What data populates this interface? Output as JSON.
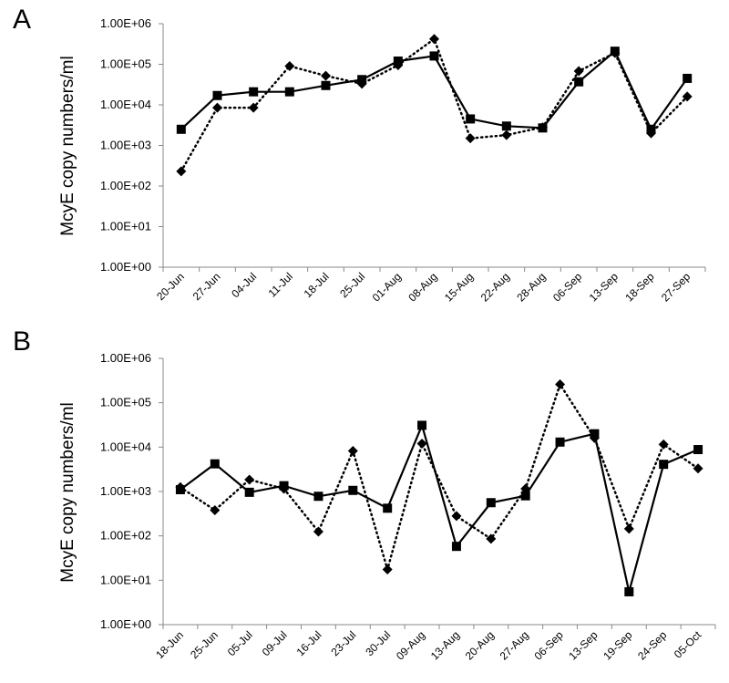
{
  "chart_data": [
    {
      "panel": "A",
      "type": "line",
      "ylabel": "McyE copy numbers/ml",
      "yscale": "log",
      "ylim": [
        1,
        1000000
      ],
      "yticks": [
        "1.00E+00",
        "1.00E+01",
        "1.00E+02",
        "1.00E+03",
        "1.00E+04",
        "1.00E+05",
        "1.00E+06"
      ],
      "grid": false,
      "categories": [
        "20-Jun",
        "27-Jun",
        "04-Jul",
        "11-Jul",
        "18-Jul",
        "25-Jul",
        "01-Aug",
        "08-Aug",
        "15-Aug",
        "22-Aug",
        "28-Aug",
        "06-Sep",
        "13-Sep",
        "18-Sep",
        "27-Sep"
      ],
      "series": [
        {
          "marker": "square",
          "line": "solid",
          "color": "#000000",
          "values": [
            2500,
            17000,
            21000,
            21000,
            30000,
            42000,
            120000,
            160000,
            4500,
            3000,
            2700,
            37000,
            210000,
            2500,
            45000
          ]
        },
        {
          "marker": "diamond",
          "line": "dotted",
          "color": "#000000",
          "values": [
            230,
            8500,
            8500,
            90000,
            52000,
            33000,
            95000,
            420000,
            1500,
            1800,
            2800,
            68000,
            190000,
            2000,
            16000
          ]
        }
      ]
    },
    {
      "panel": "B",
      "type": "line",
      "ylabel": "McyE copy numbers/ml",
      "yscale": "log",
      "ylim": [
        1,
        1000000
      ],
      "yticks": [
        "1.00E+00",
        "1.00E+01",
        "1.00E+02",
        "1.00E+03",
        "1.00E+04",
        "1.00E+05",
        "1.00E+06"
      ],
      "grid": false,
      "categories": [
        "18-Jun",
        "25-Jun",
        "05-Jul",
        "09-Jul",
        "16-Jul",
        "23-Jul",
        "30-Jul",
        "09-Aug",
        "13-Aug",
        "20-Aug",
        "27-Aug",
        "06-Sep",
        "13-Sep",
        "19-Sep",
        "24-Sep",
        "05-Oct"
      ],
      "series": [
        {
          "marker": "square",
          "line": "solid",
          "color": "#000000",
          "values": [
            1100,
            4200,
            960,
            1350,
            780,
            1060,
            420,
            31000,
            58,
            560,
            800,
            13000,
            20000,
            5.5,
            4100,
            8800
          ]
        },
        {
          "marker": "diamond",
          "line": "dotted",
          "color": "#000000",
          "values": [
            1250,
            380,
            1850,
            1150,
            125,
            8200,
            17.5,
            12000,
            280,
            86,
            1150,
            260000,
            16000,
            145,
            11500,
            3300
          ]
        }
      ]
    }
  ]
}
